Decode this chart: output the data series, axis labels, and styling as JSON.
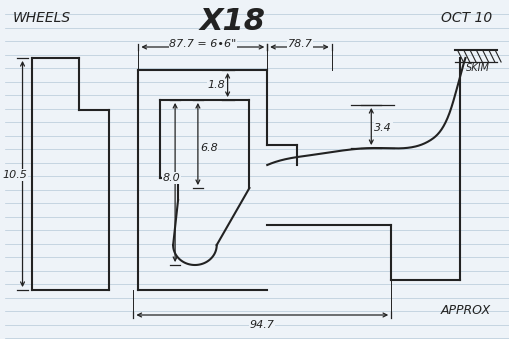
{
  "title": "X18",
  "label_wheels": "WHEELS",
  "label_oct": "OCT 10",
  "label_approx": "APPROX",
  "label_skim": "SKIM",
  "dim_877": "87.7 = 6•6\"",
  "dim_787": "78.7",
  "dim_105": "10.5",
  "dim_18": "1.8",
  "dim_34": "3.4",
  "dim_80": "8.0",
  "dim_68": "6.8",
  "dim_947": "94.7",
  "bg_color": "#eef3f8",
  "line_color": "#222222",
  "ruled_color": "#b5c8d8"
}
